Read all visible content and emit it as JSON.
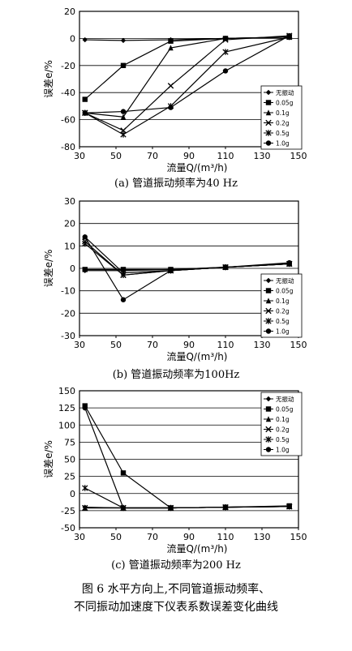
{
  "chart_data": [
    {
      "type": "line",
      "caption": "(a)  管道振动频率为40 Hz",
      "xlabel": "流量Q/(m³/h)",
      "ylabel": "误差e/%",
      "xlim": [
        30,
        150
      ],
      "ylim": [
        -80,
        20
      ],
      "xticks": [
        30,
        50,
        70,
        90,
        110,
        130,
        150
      ],
      "yticks": [
        -80,
        -60,
        -40,
        -20,
        0,
        20
      ],
      "grid": "horizontal",
      "legend_position": "bottom-right",
      "series": [
        {
          "name": "无振动",
          "x": [
            33,
            54,
            80,
            110,
            145
          ],
          "y": [
            -1,
            -1.5,
            -1,
            0,
            1
          ]
        },
        {
          "name": "0.05g",
          "x": [
            33,
            54,
            80,
            110,
            145
          ],
          "y": [
            -45,
            -20,
            -2,
            0,
            1
          ]
        },
        {
          "name": "0.1g",
          "x": [
            33,
            54,
            80,
            110,
            145
          ],
          "y": [
            -55,
            -58,
            -7,
            0,
            1
          ]
        },
        {
          "name": "0.2g",
          "x": [
            33,
            54,
            80,
            110,
            145
          ],
          "y": [
            -55,
            -68,
            -35,
            -1,
            2
          ]
        },
        {
          "name": "0.5g",
          "x": [
            33,
            54,
            80,
            110,
            145
          ],
          "y": [
            -55,
            -71,
            -50,
            -10,
            1
          ]
        },
        {
          "name": "1.0g",
          "x": [
            33,
            54,
            80,
            110,
            145
          ],
          "y": [
            -55,
            -54,
            -51,
            -24,
            2
          ]
        }
      ]
    },
    {
      "type": "line",
      "caption": "(b)  管道振动频率为100Hz",
      "xlabel": "流量Q/(m³/h)",
      "ylabel": "误差e/%",
      "xlim": [
        30,
        150
      ],
      "ylim": [
        -30,
        30
      ],
      "xticks": [
        30,
        50,
        70,
        90,
        110,
        130,
        150
      ],
      "yticks": [
        -30,
        -20,
        -10,
        0,
        10,
        20,
        30
      ],
      "grid": "horizontal",
      "legend_position": "right",
      "series": [
        {
          "name": "无振动",
          "x": [
            33,
            54,
            80,
            110,
            145
          ],
          "y": [
            -1,
            -1,
            -0.5,
            0.5,
            2
          ]
        },
        {
          "name": "0.05g",
          "x": [
            33,
            54,
            80,
            110,
            145
          ],
          "y": [
            -0.5,
            -0.5,
            -0.5,
            0.5,
            2
          ]
        },
        {
          "name": "0.1g",
          "x": [
            33,
            54,
            80,
            110,
            145
          ],
          "y": [
            14,
            -2,
            -1,
            0.5,
            2
          ]
        },
        {
          "name": "0.2g",
          "x": [
            33,
            54,
            80,
            110,
            145
          ],
          "y": [
            12,
            -3,
            -1,
            0.5,
            2
          ]
        },
        {
          "name": "0.5g",
          "x": [
            33,
            54,
            80,
            110,
            145
          ],
          "y": [
            11,
            -3,
            -1,
            0.5,
            2
          ]
        },
        {
          "name": "1.0g",
          "x": [
            33,
            54,
            80,
            110,
            145
          ],
          "y": [
            14,
            -14,
            -1,
            0.5,
            2.5
          ]
        }
      ]
    },
    {
      "type": "line",
      "caption": "(c)  管道振动频率为200 Hz",
      "xlabel": "流量Q/(m³/h)",
      "ylabel": "误差e/%",
      "xlim": [
        30,
        150
      ],
      "ylim": [
        -50,
        150
      ],
      "xticks": [
        30,
        50,
        70,
        90,
        110,
        130,
        150
      ],
      "yticks": [
        -50,
        -25,
        0,
        25,
        50,
        75,
        100,
        125,
        150
      ],
      "grid": "horizontal",
      "legend_position": "top-right",
      "series": [
        {
          "name": "无振动",
          "x": [
            33,
            54,
            80,
            110,
            145
          ],
          "y": [
            -20,
            -21,
            -21,
            -20,
            -19
          ]
        },
        {
          "name": "0.05g",
          "x": [
            33,
            54,
            80,
            110,
            145
          ],
          "y": [
            128,
            30,
            -21,
            -20,
            -18
          ]
        },
        {
          "name": "0.1g",
          "x": [
            33,
            54,
            80,
            110,
            145
          ],
          "y": [
            -21,
            -21,
            -21,
            -20,
            -19
          ]
        },
        {
          "name": "0.2g",
          "x": [
            33,
            54,
            80,
            110,
            145
          ],
          "y": [
            -21,
            -21,
            -21,
            -20,
            -19
          ]
        },
        {
          "name": "0.5g",
          "x": [
            33,
            54,
            80,
            110,
            145
          ],
          "y": [
            8,
            -21,
            -21,
            -20,
            -19
          ]
        },
        {
          "name": "1.0g",
          "x": [
            33,
            54,
            80,
            110,
            145
          ],
          "y": [
            125,
            -21,
            -21,
            -20,
            -19
          ]
        }
      ]
    }
  ],
  "figure_caption": {
    "line1": "图 6   水平方向上,不同管道振动频率、",
    "line2": "不同振动加速度下仪表系数误差变化曲线"
  }
}
